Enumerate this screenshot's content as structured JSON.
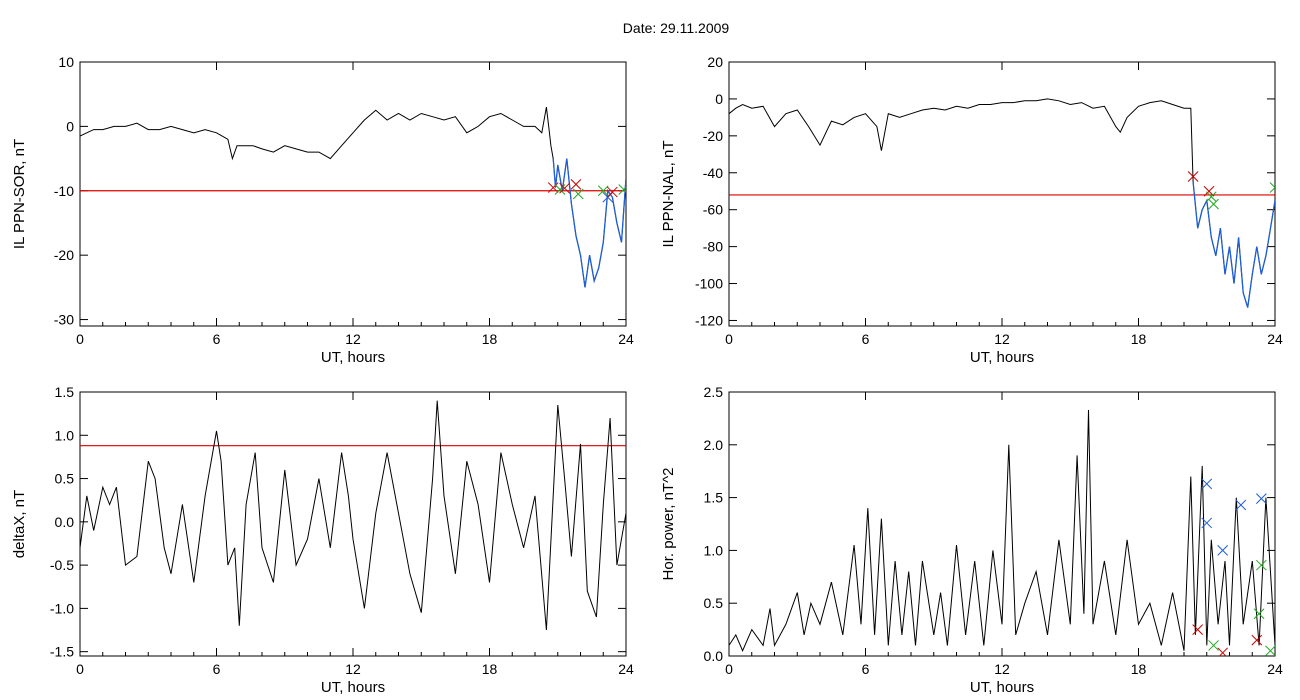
{
  "figure": {
    "title": "Date:  29.11.2009"
  },
  "colors": {
    "trace": "#000000",
    "threshold": "#dd0000",
    "event": "#1f5fd6",
    "marker_red": "#cc0000",
    "marker_green": "#22aa22",
    "marker_blue": "#1f5fd6"
  },
  "chart_data": [
    {
      "type": "line",
      "xlabel": "UT, hours",
      "ylabel": "IL PPN-SOR, nT",
      "xlim": [
        0,
        24
      ],
      "ylim": [
        -31,
        10
      ],
      "xticks": [
        "0",
        "6",
        "12",
        "18",
        "24"
      ],
      "yticks": [
        "10",
        "0",
        "-10",
        "-20",
        "-30"
      ],
      "grid": false,
      "threshold": -10,
      "x": [
        0,
        0.3,
        0.6,
        1,
        1.5,
        2,
        2.5,
        3,
        3.5,
        4,
        4.5,
        5,
        5.5,
        6,
        6.5,
        6.7,
        6.9,
        7.2,
        7.6,
        8,
        8.5,
        9,
        9.5,
        10,
        10.5,
        11,
        11.5,
        12,
        12.5,
        13,
        13.5,
        14,
        14.5,
        15,
        15.5,
        16,
        16.5,
        17,
        17.5,
        18,
        18.5,
        19,
        19.5,
        20,
        20.3,
        20.5,
        20.6,
        20.7,
        20.8,
        20.9,
        21,
        21.2,
        21.4,
        21.6,
        21.8,
        22,
        22.2,
        22.4,
        22.6,
        22.8,
        23,
        23.2,
        23.4,
        23.6,
        23.8,
        24
      ],
      "y": [
        -1.5,
        -1,
        -0.5,
        -0.5,
        0,
        0,
        0.5,
        -0.5,
        -0.5,
        0,
        -0.5,
        -1,
        -0.5,
        -1,
        -2,
        -5,
        -3,
        -3,
        -3,
        -3.5,
        -4,
        -3,
        -3.5,
        -4,
        -4,
        -5,
        -3,
        -1,
        1,
        2.5,
        1,
        2,
        1,
        2,
        1.5,
        1,
        1.5,
        -1,
        0,
        1.5,
        2,
        1,
        0,
        0,
        -1,
        3,
        0,
        -3,
        -5,
        -9.5,
        -6,
        -10,
        -5,
        -12,
        -17,
        -20,
        -25,
        -20,
        -24,
        -22,
        -18,
        -10,
        -11,
        -15,
        -18,
        -8
      ],
      "event_x": [
        20.8,
        20.9,
        21,
        21.2,
        21.4,
        21.6,
        21.8,
        22,
        22.2,
        22.4,
        22.6,
        22.8,
        23,
        23.2,
        23.4,
        23.6,
        23.8,
        24
      ],
      "event_y": [
        -5,
        -9.5,
        -6,
        -10,
        -5,
        -12,
        -17,
        -20,
        -25,
        -20,
        -24,
        -22,
        -18,
        -10,
        -11,
        -15,
        -18,
        -8
      ],
      "markers": [
        {
          "x": 20.8,
          "y": -9.5,
          "color": "red"
        },
        {
          "x": 21.1,
          "y": -9.8,
          "color": "green"
        },
        {
          "x": 21.3,
          "y": -9.6,
          "color": "red"
        },
        {
          "x": 21.8,
          "y": -9,
          "color": "red"
        },
        {
          "x": 21.9,
          "y": -10.5,
          "color": "green"
        },
        {
          "x": 23.0,
          "y": -10,
          "color": "green"
        },
        {
          "x": 23.2,
          "y": -11,
          "color": "blue"
        },
        {
          "x": 23.4,
          "y": -10.2,
          "color": "red"
        },
        {
          "x": 23.9,
          "y": -9.8,
          "color": "green"
        }
      ]
    },
    {
      "type": "line",
      "xlabel": "UT, hours",
      "ylabel": "IL PPN-NAL, nT",
      "xlim": [
        0,
        24
      ],
      "ylim": [
        -123,
        20
      ],
      "xticks": [
        "0",
        "6",
        "12",
        "18",
        "24"
      ],
      "yticks": [
        "20",
        "0",
        "-20",
        "-40",
        "-60",
        "-80",
        "-100",
        "-120"
      ],
      "grid": false,
      "threshold": -52,
      "x": [
        0,
        0.3,
        0.6,
        1,
        1.5,
        2,
        2.5,
        3,
        3.5,
        4,
        4.5,
        5,
        5.5,
        6,
        6.5,
        6.7,
        7,
        7.5,
        8,
        8.5,
        9,
        9.5,
        10,
        10.5,
        11,
        11.5,
        12,
        12.5,
        13,
        13.5,
        14,
        14.5,
        15,
        15.5,
        16,
        16.5,
        17,
        17.2,
        17.5,
        18,
        18.5,
        19,
        19.5,
        20,
        20.3,
        20.4,
        20.6,
        20.8,
        21,
        21.2,
        21.4,
        21.6,
        21.8,
        22,
        22.2,
        22.4,
        22.6,
        22.8,
        23,
        23.2,
        23.4,
        23.6,
        23.8,
        24
      ],
      "y": [
        -8,
        -5,
        -3,
        -5,
        -4,
        -15,
        -8,
        -6,
        -15,
        -25,
        -12,
        -14,
        -10,
        -8,
        -15,
        -28,
        -8,
        -10,
        -8,
        -6,
        -5,
        -6,
        -4,
        -5,
        -3,
        -3,
        -2,
        -2,
        -1,
        -1,
        0,
        -1,
        -3,
        -2,
        -5,
        -4,
        -15,
        -18,
        -10,
        -4,
        -2,
        -1,
        -3,
        -5,
        -5,
        -45,
        -70,
        -60,
        -55,
        -75,
        -85,
        -70,
        -95,
        -80,
        -100,
        -75,
        -105,
        -113,
        -95,
        -80,
        -95,
        -85,
        -70,
        -55
      ],
      "event_x": [
        20.4,
        20.6,
        20.8,
        21,
        21.2,
        21.4,
        21.6,
        21.8,
        22,
        22.2,
        22.4,
        22.6,
        22.8,
        23,
        23.2,
        23.4,
        23.6,
        23.8,
        24
      ],
      "event_y": [
        -45,
        -70,
        -60,
        -55,
        -75,
        -85,
        -70,
        -95,
        -80,
        -100,
        -75,
        -105,
        -113,
        -95,
        -80,
        -95,
        -85,
        -70,
        -55
      ],
      "markers": [
        {
          "x": 20.4,
          "y": -42,
          "color": "red"
        },
        {
          "x": 21.1,
          "y": -50,
          "color": "red"
        },
        {
          "x": 21.2,
          "y": -53,
          "color": "green"
        },
        {
          "x": 21.3,
          "y": -57,
          "color": "green"
        },
        {
          "x": 24,
          "y": -48,
          "color": "green"
        }
      ]
    },
    {
      "type": "line",
      "xlabel": "UT, hours",
      "ylabel": "deltaX, nT",
      "xlim": [
        0,
        24
      ],
      "ylim": [
        -1.55,
        1.5
      ],
      "xticks": [
        "0",
        "6",
        "12",
        "18",
        "24"
      ],
      "yticks": [
        "1.5",
        "1.0",
        "0.5",
        "0.0",
        "-0.5",
        "-1.0",
        "-1.5"
      ],
      "grid": false,
      "threshold": 0.88,
      "x": [
        0,
        0.3,
        0.6,
        1,
        1.3,
        1.6,
        2,
        2.5,
        3,
        3.3,
        3.7,
        4,
        4.5,
        5,
        5.5,
        6,
        6.2,
        6.5,
        6.8,
        7,
        7.3,
        7.7,
        8,
        8.5,
        9,
        9.5,
        10,
        10.5,
        11,
        11.5,
        11.8,
        12,
        12.5,
        13,
        13.5,
        14,
        14.5,
        15,
        15.5,
        15.7,
        16,
        16.5,
        17,
        17.5,
        18,
        18.5,
        19,
        19.5,
        20,
        20.5,
        21,
        21.3,
        21.6,
        22,
        22.3,
        22.7,
        23,
        23.3,
        23.6,
        24
      ],
      "y": [
        -0.3,
        0.3,
        -0.1,
        0.4,
        0.2,
        0.4,
        -0.5,
        -0.4,
        0.7,
        0.5,
        -0.3,
        -0.6,
        0.2,
        -0.7,
        0.3,
        1.05,
        0.7,
        -0.5,
        -0.3,
        -1.2,
        0.2,
        0.8,
        -0.3,
        -0.7,
        0.6,
        -0.5,
        -0.2,
        0.5,
        -0.3,
        0.8,
        0.3,
        -0.2,
        -1.0,
        0.1,
        0.8,
        0.1,
        -0.6,
        -1.05,
        0.5,
        1.4,
        0.3,
        -0.6,
        0.7,
        0.2,
        -0.7,
        0.8,
        0.2,
        -0.3,
        0.3,
        -1.25,
        1.35,
        0.5,
        -0.4,
        0.9,
        -0.8,
        -1.1,
        0.2,
        1.2,
        -0.5,
        0.1
      ],
      "event_x": [],
      "event_y": [],
      "markers": []
    },
    {
      "type": "line",
      "xlabel": "UT, hours",
      "ylabel": "Hor. power, nT^2",
      "xlim": [
        0,
        24
      ],
      "ylim": [
        0,
        2.5
      ],
      "xticks": [
        "0",
        "6",
        "12",
        "18",
        "24"
      ],
      "yticks": [
        "2.5",
        "2.0",
        "1.5",
        "1.0",
        "0.5",
        "0.0"
      ],
      "grid": false,
      "threshold": null,
      "x": [
        0,
        0.3,
        0.6,
        1,
        1.5,
        1.8,
        2,
        2.5,
        3,
        3.3,
        3.6,
        4,
        4.5,
        5,
        5.5,
        5.8,
        6.1,
        6.4,
        6.7,
        7,
        7.3,
        7.6,
        7.9,
        8.2,
        8.5,
        9,
        9.3,
        9.6,
        10,
        10.4,
        10.8,
        11.2,
        11.6,
        12,
        12.3,
        12.6,
        13,
        13.5,
        14,
        14.5,
        15,
        15.3,
        15.6,
        15.8,
        16,
        16.5,
        17,
        17.5,
        18,
        18.5,
        19,
        19.5,
        20,
        20.3,
        20.5,
        20.8,
        21,
        21.2,
        21.5,
        21.8,
        22,
        22.3,
        22.6,
        23,
        23.3,
        23.6,
        24
      ],
      "y": [
        0.1,
        0.2,
        0.05,
        0.25,
        0.1,
        0.45,
        0.1,
        0.3,
        0.6,
        0.2,
        0.5,
        0.3,
        0.7,
        0.2,
        1.05,
        0.3,
        1.4,
        0.2,
        1.3,
        0.1,
        0.9,
        0.2,
        0.8,
        0.1,
        0.9,
        0.2,
        0.6,
        0.1,
        1.05,
        0.2,
        0.9,
        0.1,
        1.0,
        0.3,
        2.0,
        0.2,
        0.5,
        0.8,
        0.2,
        1.1,
        0.3,
        1.9,
        0.4,
        2.33,
        0.3,
        0.9,
        0.2,
        1.1,
        0.3,
        0.5,
        0.1,
        0.6,
        0.05,
        1.7,
        0.2,
        1.8,
        0.1,
        1.1,
        0.3,
        0.9,
        0.1,
        1.5,
        0.3,
        0.9,
        0.1,
        1.5,
        0.1
      ],
      "event_x": [],
      "event_y": [],
      "markers": [
        {
          "x": 21.0,
          "y": 1.63,
          "color": "blue"
        },
        {
          "x": 21.0,
          "y": 1.26,
          "color": "blue"
        },
        {
          "x": 21.7,
          "y": 1.0,
          "color": "blue"
        },
        {
          "x": 22.5,
          "y": 1.43,
          "color": "blue"
        },
        {
          "x": 23.4,
          "y": 1.49,
          "color": "blue"
        },
        {
          "x": 23.4,
          "y": 0.86,
          "color": "green"
        },
        {
          "x": 23.3,
          "y": 0.4,
          "color": "green"
        },
        {
          "x": 20.6,
          "y": 0.25,
          "color": "red"
        },
        {
          "x": 21.3,
          "y": 0.1,
          "color": "green"
        },
        {
          "x": 21.7,
          "y": 0.03,
          "color": "red"
        },
        {
          "x": 23.2,
          "y": 0.15,
          "color": "red"
        },
        {
          "x": 23.8,
          "y": 0.05,
          "color": "green"
        }
      ]
    }
  ]
}
